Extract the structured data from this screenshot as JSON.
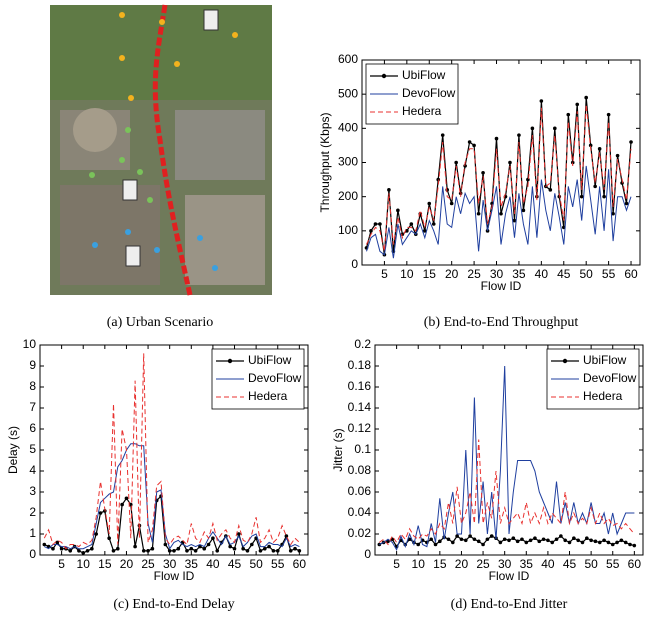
{
  "figure_a": {
    "caption": "(a) Urban Scenario"
  },
  "chart_data": [
    {
      "type": "line",
      "caption": "(b) End-to-End Throughput",
      "xlabel": "Flow ID",
      "ylabel": "Throughput (Kbps)",
      "xlim": [
        0,
        62
      ],
      "xticks": [
        5,
        10,
        15,
        20,
        25,
        30,
        35,
        40,
        45,
        50,
        55,
        60
      ],
      "ylim": [
        0,
        600
      ],
      "yticks": [
        0,
        100,
        200,
        300,
        400,
        500,
        600
      ],
      "legend": "upper left",
      "x": [
        1,
        2,
        3,
        4,
        5,
        6,
        7,
        8,
        9,
        10,
        11,
        12,
        13,
        14,
        15,
        16,
        17,
        18,
        19,
        20,
        21,
        22,
        23,
        24,
        25,
        26,
        27,
        28,
        29,
        30,
        31,
        32,
        33,
        34,
        35,
        36,
        37,
        38,
        39,
        40,
        41,
        42,
        43,
        44,
        45,
        46,
        47,
        48,
        49,
        50,
        51,
        52,
        53,
        54,
        55,
        56,
        57,
        58,
        59,
        60
      ],
      "series": [
        {
          "name": "UbiFlow",
          "color": "#000000",
          "markers": true,
          "values": [
            50,
            100,
            120,
            120,
            30,
            220,
            40,
            160,
            90,
            100,
            120,
            90,
            150,
            100,
            180,
            120,
            250,
            380,
            220,
            180,
            300,
            210,
            290,
            360,
            350,
            150,
            270,
            100,
            180,
            370,
            150,
            200,
            300,
            130,
            380,
            160,
            250,
            400,
            200,
            480,
            230,
            220,
            400,
            200,
            110,
            440,
            300,
            470,
            200,
            490,
            350,
            230,
            340,
            200,
            440,
            150,
            320,
            240,
            180,
            360
          ]
        },
        {
          "name": "DevoFlow",
          "color": "#1f3f9f",
          "values": [
            40,
            80,
            90,
            40,
            30,
            110,
            20,
            120,
            60,
            80,
            100,
            90,
            120,
            80,
            130,
            100,
            60,
            230,
            120,
            110,
            200,
            150,
            210,
            180,
            200,
            40,
            190,
            100,
            160,
            230,
            60,
            150,
            200,
            80,
            210,
            120,
            60,
            230,
            80,
            250,
            160,
            100,
            210,
            140,
            60,
            230,
            170,
            250,
            130,
            290,
            190,
            90,
            230,
            100,
            280,
            70,
            200,
            200,
            160,
            200
          ]
        },
        {
          "name": "Hedera",
          "color": "#e8312f",
          "dashed": true,
          "values": [
            60,
            90,
            110,
            100,
            40,
            210,
            60,
            140,
            80,
            110,
            110,
            100,
            160,
            110,
            170,
            130,
            230,
            360,
            200,
            190,
            290,
            200,
            300,
            340,
            340,
            180,
            260,
            120,
            170,
            340,
            170,
            210,
            290,
            150,
            360,
            180,
            230,
            380,
            190,
            460,
            230,
            240,
            380,
            210,
            130,
            420,
            290,
            450,
            220,
            470,
            340,
            240,
            330,
            220,
            420,
            170,
            310,
            250,
            190,
            340
          ]
        }
      ]
    },
    {
      "type": "line",
      "caption": "(c) End-to-End Delay",
      "xlabel": "Flow ID",
      "ylabel": "Delay (s)",
      "xlim": [
        0,
        62
      ],
      "xticks": [
        5,
        10,
        15,
        20,
        25,
        30,
        35,
        40,
        45,
        50,
        55,
        60
      ],
      "ylim": [
        0,
        10
      ],
      "yticks": [
        0,
        1,
        2,
        3,
        4,
        5,
        6,
        7,
        8,
        9,
        10
      ],
      "legend": "upper right",
      "x": [
        1,
        2,
        3,
        4,
        5,
        6,
        7,
        8,
        9,
        10,
        11,
        12,
        13,
        14,
        15,
        16,
        17,
        18,
        19,
        20,
        21,
        22,
        23,
        24,
        25,
        26,
        27,
        28,
        29,
        30,
        31,
        32,
        33,
        34,
        35,
        36,
        37,
        38,
        39,
        40,
        41,
        42,
        43,
        44,
        45,
        46,
        47,
        48,
        49,
        50,
        51,
        52,
        53,
        54,
        55,
        56,
        57,
        58,
        59,
        60
      ],
      "series": [
        {
          "name": "UbiFlow",
          "color": "#000000",
          "markers": true,
          "values": [
            0.5,
            0.4,
            0.3,
            0.6,
            0.3,
            0.3,
            0.2,
            0.4,
            0.2,
            0.1,
            0.2,
            0.3,
            1.0,
            2.0,
            2.1,
            0.8,
            0.2,
            0.3,
            2.4,
            2.7,
            2.4,
            0.4,
            1.4,
            0.2,
            0.2,
            0.3,
            2.6,
            2.8,
            0.5,
            0.2,
            0.2,
            0.3,
            0.6,
            0.2,
            0.3,
            0.2,
            0.4,
            0.3,
            0.5,
            0.8,
            0.2,
            0.6,
            0.9,
            0.4,
            0.3,
            1.0,
            0.3,
            0.2,
            0.5,
            0.8,
            0.2,
            0.3,
            0.4,
            0.2,
            0.2,
            0.5,
            0.9,
            0.2,
            0.3,
            0.2
          ]
        },
        {
          "name": "DevoFlow",
          "color": "#1f3f9f",
          "values": [
            0.4,
            0.3,
            0.5,
            0.5,
            0.4,
            0.4,
            0.3,
            0.4,
            0.3,
            0.3,
            0.4,
            0.5,
            1.5,
            2.5,
            2.7,
            2.9,
            3.0,
            4.2,
            4.5,
            5.0,
            5.3,
            5.3,
            5.2,
            5.2,
            1.5,
            0.6,
            3.0,
            3.1,
            1.0,
            0.3,
            0.6,
            0.7,
            0.5,
            0.4,
            0.5,
            0.4,
            0.5,
            0.4,
            0.8,
            1.1,
            0.8,
            0.5,
            0.9,
            0.5,
            0.6,
            0.9,
            0.4,
            0.6,
            0.9,
            1.0,
            0.4,
            0.4,
            0.6,
            0.5,
            0.5,
            0.4,
            0.8,
            0.4,
            0.5,
            0.4
          ]
        },
        {
          "name": "Hedera",
          "color": "#e8312f",
          "dashed": true,
          "values": [
            0.8,
            1.2,
            0.5,
            0.7,
            0.6,
            0.3,
            0.5,
            0.5,
            0.4,
            0.6,
            0.5,
            0.7,
            1.8,
            3.5,
            2.2,
            1.0,
            7.2,
            0.5,
            6.0,
            5.0,
            0.8,
            8.3,
            0.8,
            9.6,
            0.6,
            1.2,
            3.3,
            3.5,
            0.8,
            0.5,
            0.8,
            0.9,
            0.7,
            0.5,
            1.5,
            0.8,
            0.6,
            1.1,
            0.8,
            1.5,
            0.7,
            1.0,
            1.2,
            0.8,
            0.6,
            1.4,
            0.7,
            0.6,
            1.0,
            1.8,
            0.6,
            0.8,
            1.2,
            0.6,
            0.8,
            1.4,
            0.9,
            0.5,
            0.8,
            0.6
          ]
        }
      ]
    },
    {
      "type": "line",
      "caption": "(d) End-to-End Jitter",
      "xlabel": "Flow ID",
      "ylabel": "Jitter (s)",
      "xlim": [
        0,
        62
      ],
      "xticks": [
        5,
        10,
        15,
        20,
        25,
        30,
        35,
        40,
        45,
        50,
        55,
        60
      ],
      "ylim": [
        0,
        0.2
      ],
      "yticks": [
        0,
        0.02,
        0.04,
        0.06,
        0.08,
        0.1,
        0.12,
        0.14,
        0.16,
        0.18,
        0.2
      ],
      "legend": "upper right",
      "x": [
        1,
        2,
        3,
        4,
        5,
        6,
        7,
        8,
        9,
        10,
        11,
        12,
        13,
        14,
        15,
        16,
        17,
        18,
        19,
        20,
        21,
        22,
        23,
        24,
        25,
        26,
        27,
        28,
        29,
        30,
        31,
        32,
        33,
        34,
        35,
        36,
        37,
        38,
        39,
        40,
        41,
        42,
        43,
        44,
        45,
        46,
        47,
        48,
        49,
        50,
        51,
        52,
        53,
        54,
        55,
        56,
        57,
        58,
        59,
        60
      ],
      "series": [
        {
          "name": "UbiFlow",
          "color": "#000000",
          "markers": true,
          "values": [
            0.01,
            0.012,
            0.013,
            0.015,
            0.008,
            0.014,
            0.01,
            0.015,
            0.012,
            0.01,
            0.014,
            0.012,
            0.015,
            0.01,
            0.013,
            0.017,
            0.015,
            0.012,
            0.018,
            0.015,
            0.014,
            0.018,
            0.015,
            0.013,
            0.01,
            0.015,
            0.018,
            0.016,
            0.012,
            0.015,
            0.014,
            0.016,
            0.013,
            0.015,
            0.012,
            0.014,
            0.016,
            0.013,
            0.015,
            0.014,
            0.012,
            0.015,
            0.018,
            0.014,
            0.012,
            0.016,
            0.014,
            0.012,
            0.016,
            0.014,
            0.013,
            0.012,
            0.014,
            0.012,
            0.01,
            0.012,
            0.014,
            0.012,
            0.01,
            0.009
          ]
        },
        {
          "name": "DevoFlow",
          "color": "#1f3f9f",
          "values": [
            0.01,
            0.012,
            0.015,
            0.012,
            0.005,
            0.018,
            0.008,
            0.02,
            0.01,
            0.028,
            0.01,
            0.008,
            0.03,
            0.012,
            0.054,
            0.015,
            0.04,
            0.06,
            0.02,
            0.02,
            0.1,
            0.02,
            0.15,
            0.03,
            0.07,
            0.02,
            0.06,
            0.015,
            0.08,
            0.18,
            0.02,
            0.06,
            0.09,
            0.09,
            0.09,
            0.09,
            0.08,
            0.06,
            0.05,
            0.04,
            0.03,
            0.07,
            0.03,
            0.05,
            0.03,
            0.05,
            0.03,
            0.04,
            0.03,
            0.05,
            0.03,
            0.03,
            0.04,
            0.02,
            0.04,
            0.02,
            0.03,
            0.04,
            0.04,
            0.04
          ]
        },
        {
          "name": "Hedera",
          "color": "#e8312f",
          "dashed": true,
          "values": [
            0.012,
            0.015,
            0.01,
            0.018,
            0.012,
            0.02,
            0.015,
            0.025,
            0.018,
            0.015,
            0.02,
            0.018,
            0.025,
            0.02,
            0.03,
            0.025,
            0.05,
            0.03,
            0.065,
            0.03,
            0.04,
            0.06,
            0.03,
            0.11,
            0.03,
            0.05,
            0.035,
            0.08,
            0.03,
            0.045,
            0.03,
            0.035,
            0.04,
            0.03,
            0.05,
            0.03,
            0.04,
            0.03,
            0.045,
            0.03,
            0.04,
            0.035,
            0.03,
            0.06,
            0.03,
            0.04,
            0.03,
            0.035,
            0.03,
            0.045,
            0.03,
            0.04,
            0.03,
            0.035,
            0.028,
            0.03,
            0.025,
            0.03,
            0.025,
            0.02
          ]
        }
      ]
    }
  ]
}
